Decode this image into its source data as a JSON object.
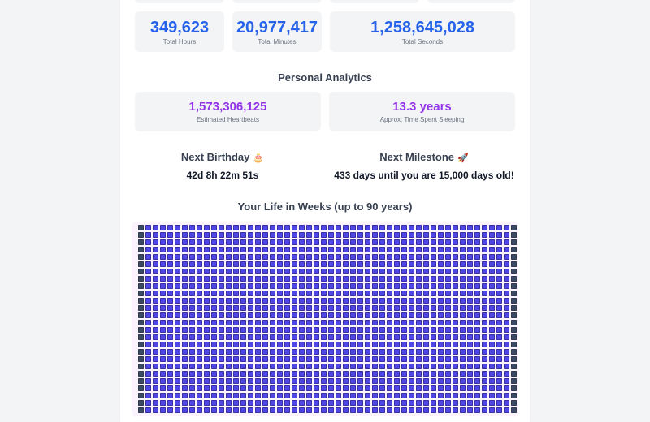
{
  "stats": {
    "hours": {
      "value": "349,623",
      "label": "Total Hours"
    },
    "minutes": {
      "value": "20,977,417",
      "label": "Total Minutes"
    },
    "seconds": {
      "value": "1,258,645,028",
      "label": "Total Seconds"
    }
  },
  "personal": {
    "title": "Personal Analytics",
    "heartbeats": {
      "value": "1,573,306,125",
      "label": "Estimated Heartbeats"
    },
    "sleeping": {
      "value": "13.3 years",
      "label": "Approx. Time Spent Sleeping"
    }
  },
  "next_birthday": {
    "title": "Next Birthday",
    "icon": "cake-icon",
    "emoji": "🎂",
    "countdown": "42d 8h 22m 51s"
  },
  "next_milestone": {
    "title": "Next Milestone",
    "icon": "rocket-icon",
    "emoji": "🚀",
    "text": "433 days until you are 15,000 days old!"
  },
  "weeks": {
    "title": "Your Life in Weeks (up to 90 years)",
    "columns_per_row": 52,
    "colors": {
      "lived": "#4f46e5",
      "edge": "#3b4a63",
      "background": "#fbf3fd"
    }
  }
}
